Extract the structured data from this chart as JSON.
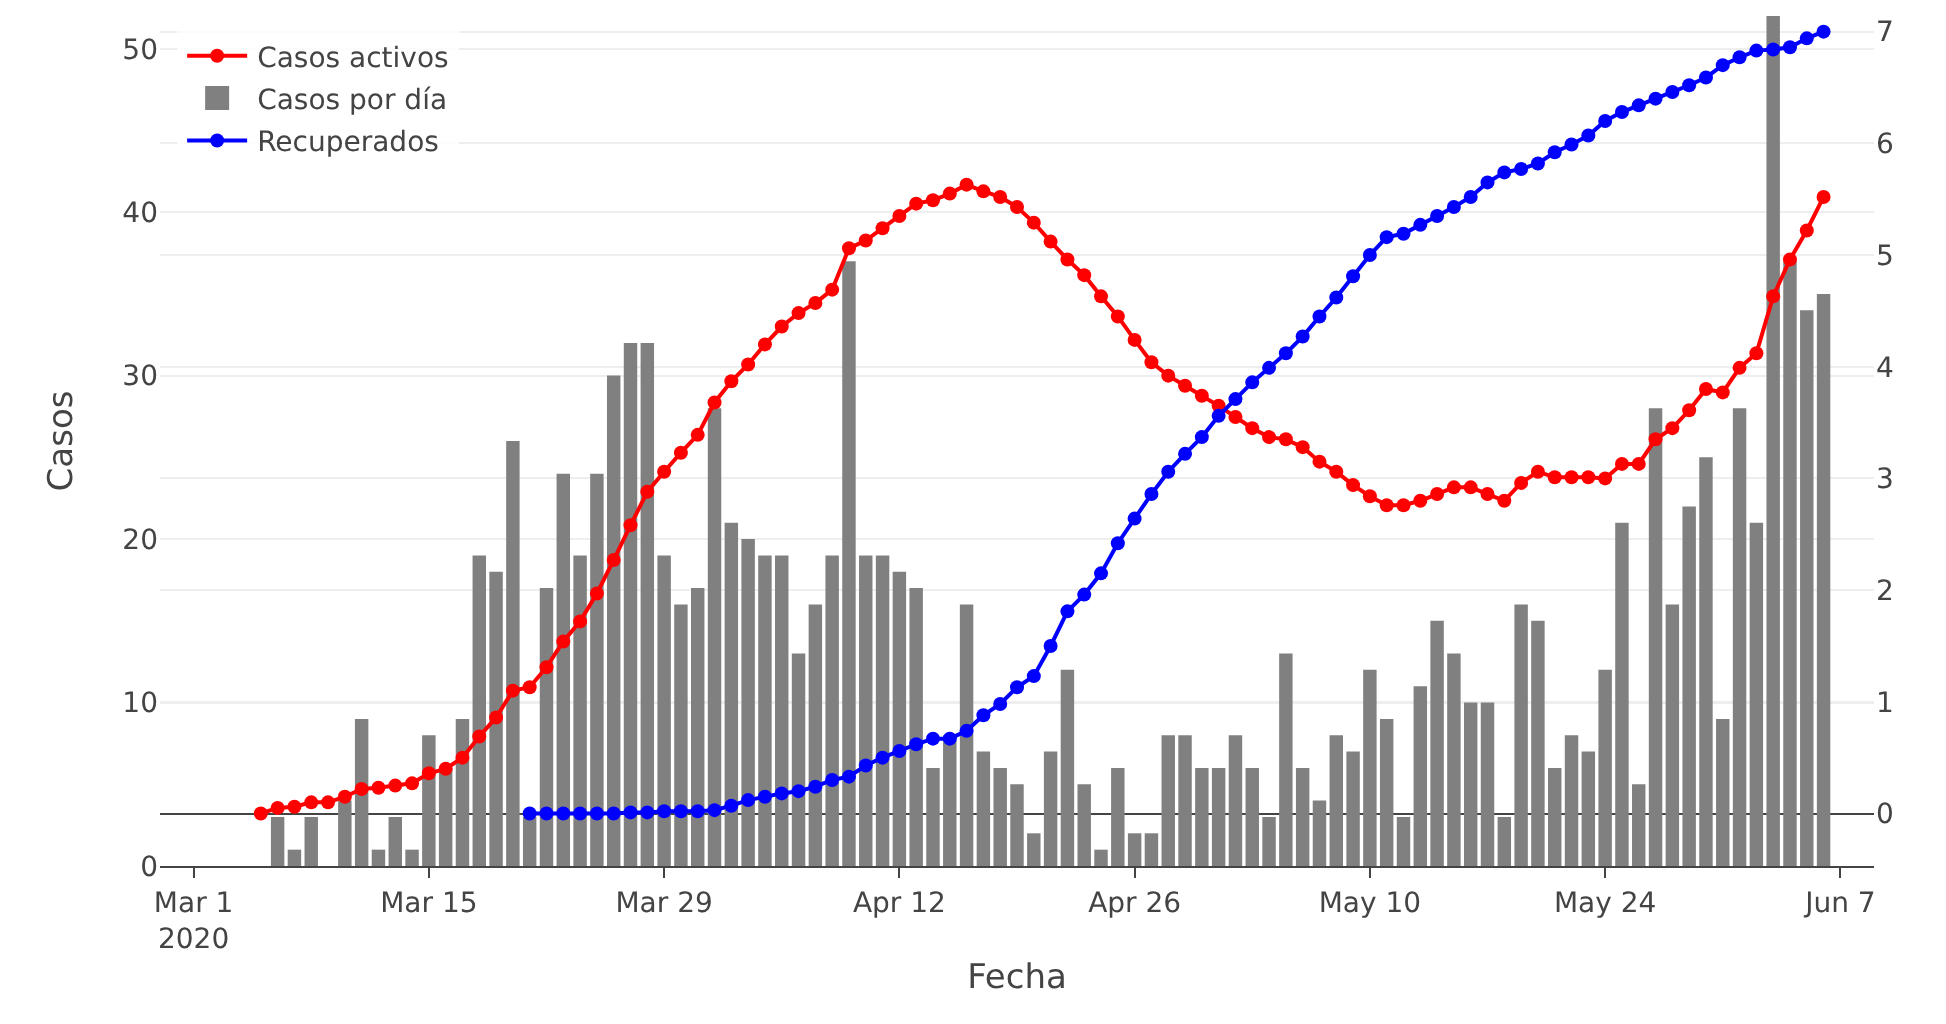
{
  "chart_data": {
    "type": "bar",
    "xlabel": "Fecha",
    "ylabel": "Casos",
    "grid": "y",
    "legend": "top left",
    "marker": "circle",
    "line_style": "solid",
    "xlim": [
      "2020-02-28",
      "2020-06-09"
    ],
    "xticks": [
      {
        "value": "2020-03-01",
        "label": "Mar 1\n2020"
      },
      {
        "value": "2020-03-15",
        "label": "Mar 15"
      },
      {
        "value": "2020-03-29",
        "label": "Mar 29"
      },
      {
        "value": "2020-04-12",
        "label": "Apr 12"
      },
      {
        "value": "2020-04-26",
        "label": "Apr 26"
      },
      {
        "value": "2020-05-10",
        "label": "May 10"
      },
      {
        "value": "2020-05-24",
        "label": "May 24"
      },
      {
        "value": "2020-06-07",
        "label": "Jun 7"
      }
    ],
    "ylim": [
      0,
      52
    ],
    "yticks": [
      0,
      10,
      20,
      30,
      40,
      50
    ],
    "y2lim": [
      -0.47,
      7.14
    ],
    "y2ticks": [
      0,
      1,
      2,
      3,
      4,
      5,
      6,
      7
    ],
    "series": [
      {
        "name": "Casos activos",
        "type": "line",
        "axis": "y2",
        "color": "#ff0000",
        "x": [
          "2020-03-05",
          "2020-03-06",
          "2020-03-07",
          "2020-03-08",
          "2020-03-09",
          "2020-03-10",
          "2020-03-11",
          "2020-03-12",
          "2020-03-13",
          "2020-03-14",
          "2020-03-15",
          "2020-03-16",
          "2020-03-17",
          "2020-03-18",
          "2020-03-19",
          "2020-03-20",
          "2020-03-21",
          "2020-03-22",
          "2020-03-23",
          "2020-03-24",
          "2020-03-25",
          "2020-03-26",
          "2020-03-27",
          "2020-03-28",
          "2020-03-29",
          "2020-03-30",
          "2020-03-31",
          "2020-04-01",
          "2020-04-02",
          "2020-04-03",
          "2020-04-04",
          "2020-04-05",
          "2020-04-06",
          "2020-04-07",
          "2020-04-08",
          "2020-04-09",
          "2020-04-10",
          "2020-04-11",
          "2020-04-12",
          "2020-04-13",
          "2020-04-14",
          "2020-04-15",
          "2020-04-16",
          "2020-04-17",
          "2020-04-18",
          "2020-04-19",
          "2020-04-20",
          "2020-04-21",
          "2020-04-22",
          "2020-04-23",
          "2020-04-24",
          "2020-04-25",
          "2020-04-26",
          "2020-04-27",
          "2020-04-28",
          "2020-04-29",
          "2020-04-30",
          "2020-05-01",
          "2020-05-02",
          "2020-05-03",
          "2020-05-04",
          "2020-05-05",
          "2020-05-06",
          "2020-05-07",
          "2020-05-08",
          "2020-05-09",
          "2020-05-10",
          "2020-05-11",
          "2020-05-12",
          "2020-05-13",
          "2020-05-14",
          "2020-05-15",
          "2020-05-16",
          "2020-05-17",
          "2020-05-18",
          "2020-05-19",
          "2020-05-20",
          "2020-05-21",
          "2020-05-22",
          "2020-05-23",
          "2020-05-24",
          "2020-05-25",
          "2020-05-26",
          "2020-05-27",
          "2020-05-28",
          "2020-05-29",
          "2020-05-30",
          "2020-05-31",
          "2020-06-01",
          "2020-06-02",
          "2020-06-03",
          "2020-06-04",
          "2020-06-05",
          "2020-06-06"
        ],
        "values": [
          0,
          0.05,
          0.06,
          0.1,
          0.1,
          0.15,
          0.22,
          0.23,
          0.25,
          0.27,
          0.36,
          0.4,
          0.5,
          0.69,
          0.86,
          1.1,
          1.13,
          1.31,
          1.54,
          1.72,
          1.97,
          2.27,
          2.58,
          2.88,
          3.06,
          3.23,
          3.39,
          3.68,
          3.87,
          4.02,
          4.2,
          4.36,
          4.48,
          4.57,
          4.69,
          5.06,
          5.13,
          5.24,
          5.35,
          5.46,
          5.49,
          5.55,
          5.63,
          5.57,
          5.52,
          5.43,
          5.29,
          5.12,
          4.96,
          4.82,
          4.63,
          4.45,
          4.24,
          4.04,
          3.92,
          3.83,
          3.74,
          3.65,
          3.55,
          3.45,
          3.37,
          3.35,
          3.28,
          3.15,
          3.06,
          2.94,
          2.84,
          2.76,
          2.76,
          2.8,
          2.86,
          2.92,
          2.92,
          2.86,
          2.8,
          2.96,
          3.06,
          3.01,
          3.01,
          3.01,
          3.0,
          3.13,
          3.13,
          3.35,
          3.45,
          3.61,
          3.8,
          3.77,
          3.99,
          4.12,
          4.63,
          4.96,
          5.22,
          5.52
        ]
      },
      {
        "name": "Casos por día",
        "color": "#808080",
        "x": [
          "2020-03-06",
          "2020-03-07",
          "2020-03-08",
          "2020-03-09",
          "2020-03-10",
          "2020-03-11",
          "2020-03-12",
          "2020-03-13",
          "2020-03-14",
          "2020-03-15",
          "2020-03-16",
          "2020-03-17",
          "2020-03-18",
          "2020-03-19",
          "2020-03-20",
          "2020-03-21",
          "2020-03-22",
          "2020-03-23",
          "2020-03-24",
          "2020-03-25",
          "2020-03-26",
          "2020-03-27",
          "2020-03-28",
          "2020-03-29",
          "2020-03-30",
          "2020-03-31",
          "2020-04-01",
          "2020-04-02",
          "2020-04-03",
          "2020-04-04",
          "2020-04-05",
          "2020-04-06",
          "2020-04-07",
          "2020-04-08",
          "2020-04-09",
          "2020-04-10",
          "2020-04-11",
          "2020-04-12",
          "2020-04-13",
          "2020-04-14",
          "2020-04-15",
          "2020-04-16",
          "2020-04-17",
          "2020-04-18",
          "2020-04-19",
          "2020-04-20",
          "2020-04-21",
          "2020-04-22",
          "2020-04-23",
          "2020-04-24",
          "2020-04-25",
          "2020-04-26",
          "2020-04-27",
          "2020-04-28",
          "2020-04-29",
          "2020-04-30",
          "2020-05-01",
          "2020-05-02",
          "2020-05-03",
          "2020-05-04",
          "2020-05-05",
          "2020-05-06",
          "2020-05-07",
          "2020-05-08",
          "2020-05-09",
          "2020-05-10",
          "2020-05-11",
          "2020-05-12",
          "2020-05-13",
          "2020-05-14",
          "2020-05-15",
          "2020-05-16",
          "2020-05-17",
          "2020-05-18",
          "2020-05-19",
          "2020-05-20",
          "2020-05-21",
          "2020-05-22",
          "2020-05-23",
          "2020-05-24",
          "2020-05-25",
          "2020-05-26",
          "2020-05-27",
          "2020-05-28",
          "2020-05-29",
          "2020-05-30",
          "2020-05-31",
          "2020-06-01",
          "2020-06-02",
          "2020-06-03",
          "2020-06-04",
          "2020-06-05",
          "2020-06-06"
        ],
        "values": [
          3,
          1,
          3,
          0,
          4,
          9,
          1,
          3,
          1,
          8,
          6,
          9,
          19,
          18,
          26,
          3,
          17,
          24,
          19,
          24,
          30,
          32,
          32,
          19,
          16,
          17,
          28,
          21,
          20,
          19,
          19,
          13,
          16,
          19,
          37,
          19,
          19,
          18,
          17,
          6,
          8,
          16,
          7,
          6,
          5,
          2,
          7,
          12,
          5,
          1,
          6,
          2,
          2,
          8,
          8,
          6,
          6,
          8,
          6,
          3,
          13,
          6,
          4,
          8,
          7,
          12,
          9,
          3,
          11,
          15,
          13,
          10,
          10,
          3,
          16,
          15,
          6,
          8,
          7,
          12,
          21,
          5,
          28,
          16,
          22,
          25,
          9,
          28,
          21,
          52,
          37,
          34,
          35
        ]
      },
      {
        "name": "Recuperados",
        "type": "line",
        "axis": "y2",
        "color": "#0000ff",
        "x": [
          "2020-03-21",
          "2020-03-22",
          "2020-03-23",
          "2020-03-24",
          "2020-03-25",
          "2020-03-26",
          "2020-03-27",
          "2020-03-28",
          "2020-03-29",
          "2020-03-30",
          "2020-03-31",
          "2020-04-01",
          "2020-04-02",
          "2020-04-03",
          "2020-04-04",
          "2020-04-05",
          "2020-04-06",
          "2020-04-07",
          "2020-04-08",
          "2020-04-09",
          "2020-04-10",
          "2020-04-11",
          "2020-04-12",
          "2020-04-13",
          "2020-04-14",
          "2020-04-15",
          "2020-04-16",
          "2020-04-17",
          "2020-04-18",
          "2020-04-19",
          "2020-04-20",
          "2020-04-21",
          "2020-04-22",
          "2020-04-23",
          "2020-04-24",
          "2020-04-25",
          "2020-04-26",
          "2020-04-27",
          "2020-04-28",
          "2020-04-29",
          "2020-04-30",
          "2020-05-01",
          "2020-05-02",
          "2020-05-03",
          "2020-05-04",
          "2020-05-05",
          "2020-05-06",
          "2020-05-07",
          "2020-05-08",
          "2020-05-09",
          "2020-05-10",
          "2020-05-11",
          "2020-05-12",
          "2020-05-13",
          "2020-05-14",
          "2020-05-15",
          "2020-05-16",
          "2020-05-17",
          "2020-05-18",
          "2020-05-19",
          "2020-05-20",
          "2020-05-21",
          "2020-05-22",
          "2020-05-23",
          "2020-05-24",
          "2020-05-25",
          "2020-05-26",
          "2020-05-27",
          "2020-05-28",
          "2020-05-29",
          "2020-05-30",
          "2020-05-31",
          "2020-06-01",
          "2020-06-02",
          "2020-06-03",
          "2020-06-04",
          "2020-06-05",
          "2020-06-06"
        ],
        "values": [
          0,
          0,
          0,
          0,
          0,
          0,
          0.01,
          0.01,
          0.02,
          0.02,
          0.02,
          0.03,
          0.07,
          0.12,
          0.15,
          0.18,
          0.2,
          0.24,
          0.3,
          0.33,
          0.43,
          0.5,
          0.56,
          0.62,
          0.67,
          0.67,
          0.74,
          0.88,
          0.98,
          1.13,
          1.23,
          1.5,
          1.81,
          1.96,
          2.15,
          2.42,
          2.64,
          2.86,
          3.06,
          3.22,
          3.37,
          3.56,
          3.71,
          3.86,
          3.99,
          4.12,
          4.27,
          4.45,
          4.62,
          4.81,
          5.0,
          5.16,
          5.19,
          5.27,
          5.35,
          5.43,
          5.52,
          5.65,
          5.74,
          5.77,
          5.82,
          5.92,
          5.99,
          6.07,
          6.2,
          6.28,
          6.34,
          6.4,
          6.46,
          6.52,
          6.59,
          6.7,
          6.77,
          6.83,
          6.84,
          6.86,
          6.94,
          7.0
        ]
      }
    ]
  }
}
